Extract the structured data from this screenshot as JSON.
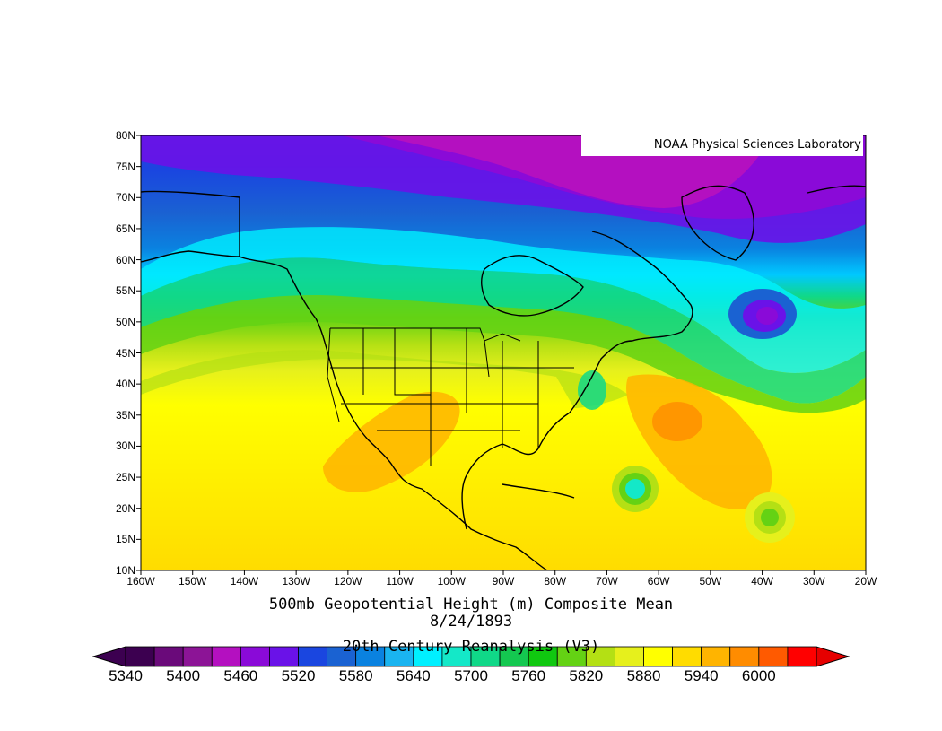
{
  "credit": "NOAA Physical Sciences Laboratory",
  "title": "500mb Geopotential Height (m) Composite Mean",
  "date": "8/24/1893",
  "source": "20th Century Reanalysis (V3)",
  "lat_ticks": [
    "80N",
    "75N",
    "70N",
    "65N",
    "60N",
    "55N",
    "50N",
    "45N",
    "40N",
    "35N",
    "30N",
    "25N",
    "20N",
    "15N",
    "10N"
  ],
  "lon_ticks": [
    "160W",
    "150W",
    "140W",
    "130W",
    "120W",
    "110W",
    "100W",
    "90W",
    "80W",
    "70W",
    "60W",
    "50W",
    "40W",
    "30W",
    "20W"
  ],
  "colorbar": {
    "labels": [
      "5340",
      "5400",
      "5460",
      "5520",
      "5580",
      "5640",
      "5700",
      "5760",
      "5820",
      "5880",
      "5940",
      "6000"
    ],
    "colors": [
      "#3c0050",
      "#6a0a7a",
      "#8c1496",
      "#b410c0",
      "#8a0ad8",
      "#6a12e8",
      "#1a46e0",
      "#1a62d2",
      "#0a82e0",
      "#1ab4f0",
      "#00f0ff",
      "#14e8c8",
      "#10d888",
      "#14c850",
      "#10c810",
      "#64d214",
      "#b4e014",
      "#e6f01c",
      "#ffff00",
      "#ffdc00",
      "#ffb400",
      "#ff8c00",
      "#ff5a00",
      "#ff0000"
    ],
    "left_color": "#3c0050",
    "right_color": "#e60000"
  },
  "colors": {
    "polar": "#8a0ad8",
    "high": "#ffdc00"
  }
}
